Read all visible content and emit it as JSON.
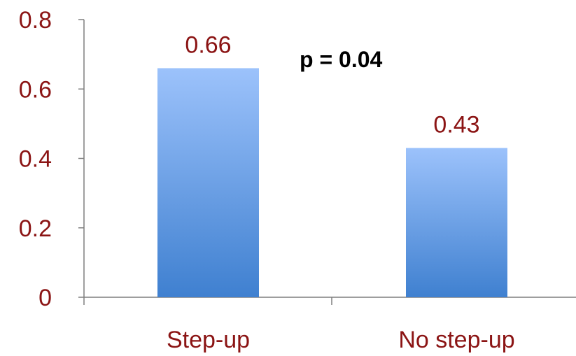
{
  "chart_data": {
    "type": "bar",
    "categories": [
      "Step-up",
      "No step-up"
    ],
    "values": [
      0.66,
      0.43
    ],
    "data_labels": [
      "0.66",
      "0.43"
    ],
    "y_ticks": [
      "0",
      "0.2",
      "0.4",
      "0.6",
      "0.8"
    ],
    "ylim": [
      0,
      0.8
    ],
    "title": "",
    "xlabel": "",
    "ylabel": "",
    "annotation": "p = 0.04",
    "grid": false,
    "legend": "none",
    "colors": {
      "bar_top": "#9cc2fb",
      "bar_bottom": "#3f80d0",
      "text": "#8b1414",
      "axis": "#7f7f7f"
    }
  }
}
